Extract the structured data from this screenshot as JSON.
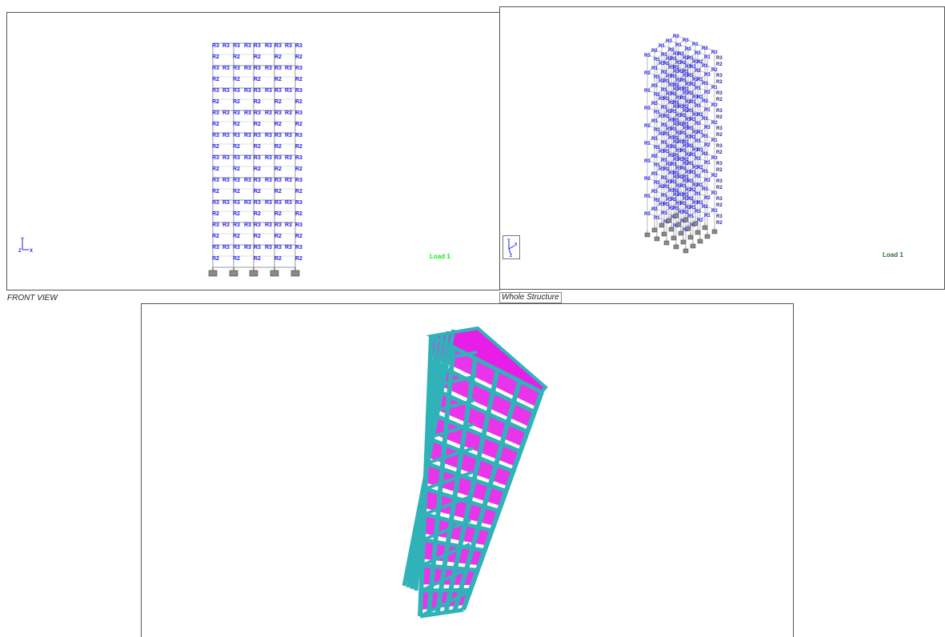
{
  "front_view": {
    "caption": "FRONT VIEW",
    "load_label": "Load 1",
    "axis": {
      "vertical": "Y",
      "horizontal": "X",
      "origin": "Z"
    },
    "rows": [
      "R3 R3 R3 R3 R3 R3 R3 R3 R3",
      "R2 R2 R2 R2 R2 R2"
    ],
    "label_odd": "R3",
    "label_even": "R2",
    "floors": 10
  },
  "whole_structure": {
    "caption": "Whole Structure",
    "load_label": "Load 1",
    "axis": {
      "vertical": "Y",
      "horizontal": "X",
      "origin": "Z"
    },
    "labels": [
      "R1",
      "R2",
      "R3"
    ]
  },
  "render_view": {
    "frame_color": "#2fb3b8",
    "slab_color": "#e81ee8"
  },
  "colors": {
    "label_blue": "#1d1df2",
    "load_green": "#19e619",
    "load_darkgreen": "#2f6b2f",
    "support_gray": "#8a8a8a"
  }
}
